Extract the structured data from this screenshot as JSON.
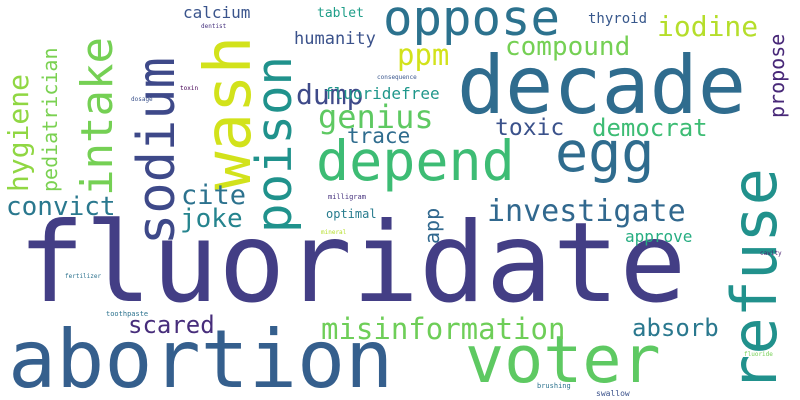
{
  "words": [
    {
      "text": "fluoridate",
      "color": "#433e85"
    },
    {
      "text": "abortion",
      "color": "#355f8d"
    },
    {
      "text": "decade",
      "color": "#2f6c8e"
    },
    {
      "text": "refuse",
      "color": "#21918c"
    },
    {
      "text": "voter",
      "color": "#5ec962"
    },
    {
      "text": "depend",
      "color": "#3dbc74"
    },
    {
      "text": "egg",
      "color": "#2f6c8e"
    },
    {
      "text": "oppose",
      "color": "#2c728e"
    },
    {
      "text": "poison",
      "color": "#20928c"
    },
    {
      "text": "wash",
      "color": "#d2e21b"
    },
    {
      "text": "sodium",
      "color": "#3e4989"
    },
    {
      "text": "intake",
      "color": "#75d054"
    },
    {
      "text": "investigate",
      "color": "#31688e"
    },
    {
      "text": "misinformation",
      "color": "#6ece58"
    },
    {
      "text": "iodine",
      "color": "#b5de2b"
    },
    {
      "text": "compound",
      "color": "#75d054"
    },
    {
      "text": "dump",
      "color": "#3e4a89"
    },
    {
      "text": "genius",
      "color": "#5ec962"
    },
    {
      "text": "ppm",
      "color": "#d2e21b"
    },
    {
      "text": "cite",
      "color": "#2c728e"
    },
    {
      "text": "joke",
      "color": "#25848e"
    },
    {
      "text": "convict",
      "color": "#2a788e"
    },
    {
      "text": "hygiene",
      "color": "#90d743"
    },
    {
      "text": "pediatrician",
      "color": "#7ad151"
    },
    {
      "text": "scared",
      "color": "#472d7b"
    },
    {
      "text": "absorb",
      "color": "#2a788e"
    },
    {
      "text": "democrat",
      "color": "#3dbc74"
    },
    {
      "text": "toxic",
      "color": "#3b528b"
    },
    {
      "text": "trace",
      "color": "#2f6c8e"
    },
    {
      "text": "propose",
      "color": "#482878"
    },
    {
      "text": "humanity",
      "color": "#3b528b"
    },
    {
      "text": "fluoridefree",
      "color": "#1f978b"
    },
    {
      "text": "calcium",
      "color": "#3a548c"
    },
    {
      "text": "tablet",
      "color": "#1f9e89"
    },
    {
      "text": "thyroid",
      "color": "#38588c"
    },
    {
      "text": "app",
      "color": "#31688e"
    },
    {
      "text": "approve",
      "color": "#26ad81"
    },
    {
      "text": "optimal",
      "color": "#287c8e"
    },
    {
      "text": "milligram",
      "color": "#46327e"
    },
    {
      "text": "mineral",
      "color": "#b5de2b"
    },
    {
      "text": "dentist",
      "color": "#46327e"
    },
    {
      "text": "consequence",
      "color": "#39568c"
    },
    {
      "text": "toxin",
      "color": "#440154"
    },
    {
      "text": "dosage",
      "color": "#3b528b"
    },
    {
      "text": "fertilizer",
      "color": "#2c728e"
    },
    {
      "text": "toothpaste",
      "color": "#2c728e"
    },
    {
      "text": "brushing",
      "color": "#2c728e"
    },
    {
      "text": "swallow",
      "color": "#3b528b"
    },
    {
      "text": "cavity",
      "color": "#481f70"
    },
    {
      "text": "fluoride",
      "color": "#75d054"
    }
  ]
}
